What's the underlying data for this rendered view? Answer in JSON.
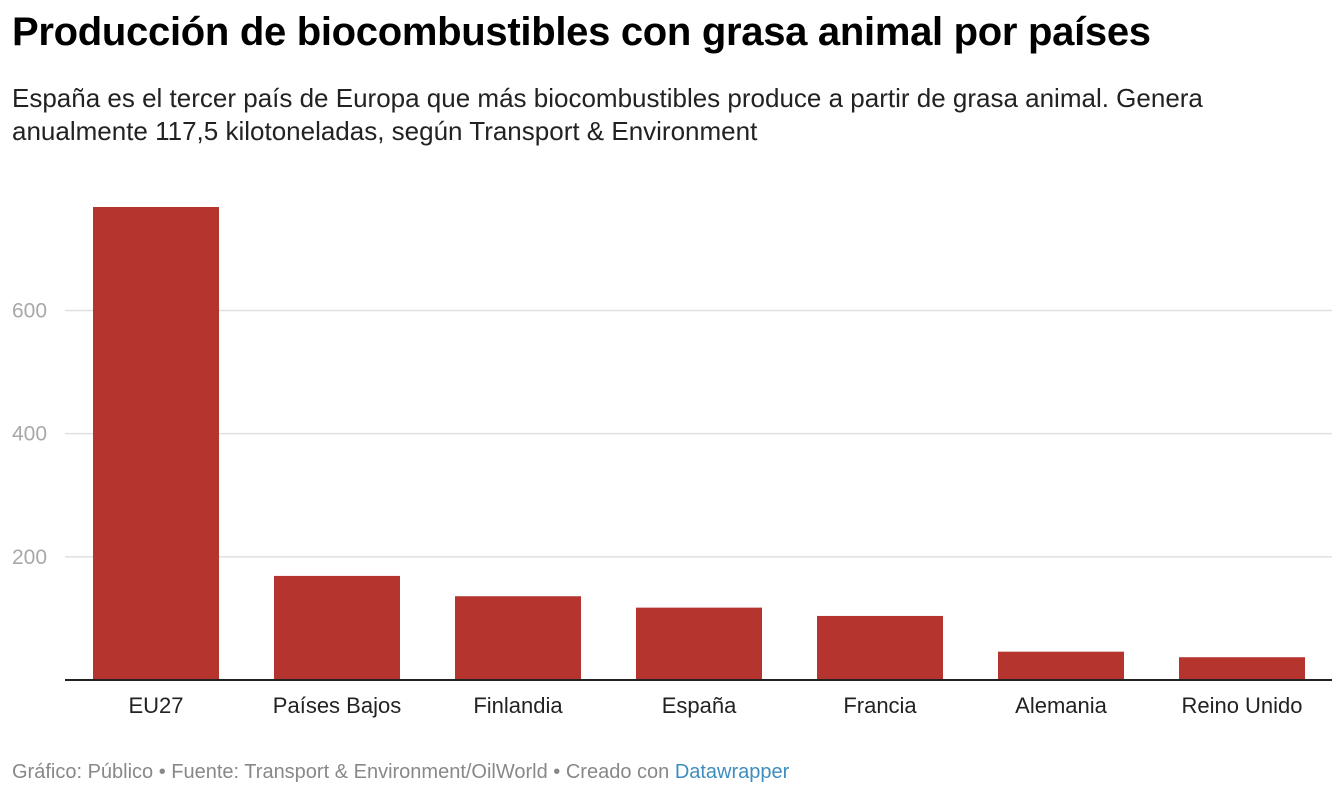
{
  "title": "Producción de biocombustibles con grasa animal por países",
  "subtitle": "España es el tercer país de Europa que más biocombustibles produce a partir de grasa animal. Genera anualmente 117,5 kilotoneladas, según Transport & Environment",
  "footer": {
    "text": "Gráfico: Público • Fuente: Transport & Environment/OilWorld • Creado con ",
    "link": "Datawrapper"
  },
  "colors": {
    "bar": "#b5342e",
    "grid": "#e0e0e0",
    "axis": "#222222",
    "tick_text": "#a8a8a8"
  },
  "chart_data": {
    "type": "bar",
    "categories": [
      "EU27",
      "Países Bajos",
      "Finlandia",
      "España",
      "Francia",
      "Alemania",
      "Reino Unido"
    ],
    "values": [
      768,
      169,
      136,
      117.5,
      104,
      46,
      37
    ],
    "ylim": [
      0,
      768
    ],
    "yticks": [
      200,
      400,
      600
    ],
    "grid": true,
    "xlabel": "",
    "ylabel": ""
  }
}
